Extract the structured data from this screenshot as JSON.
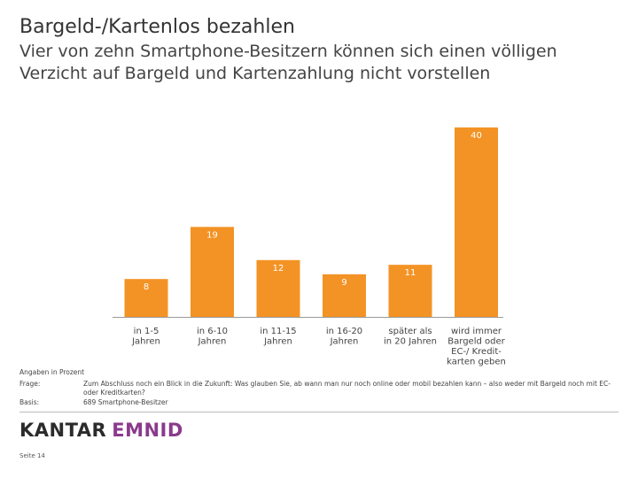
{
  "header": {
    "title": "Bargeld-/Kartenlos bezahlen",
    "subtitle": "Vier von zehn Smartphone-Besitzern können sich einen völligen Verzicht auf Bargeld und Kartenzahlung nicht vorstellen"
  },
  "chart_data": {
    "type": "bar",
    "title": "Bargeld-/Kartenlos bezahlen",
    "categories": [
      [
        "in 1-5",
        "Jahren"
      ],
      [
        "in 6-10",
        "Jahren"
      ],
      [
        "in 11-15",
        "Jahren"
      ],
      [
        "in 16-20",
        "Jahren"
      ],
      [
        "später als",
        "in 20 Jahren"
      ],
      [
        "wird immer",
        "Bargeld oder",
        "EC-/ Kredit-",
        "karten geben"
      ]
    ],
    "values": [
      8,
      19,
      12,
      9,
      11,
      40
    ],
    "xlabel": "",
    "ylabel": "",
    "ylim": [
      0,
      40
    ],
    "bar_color": "#f39325",
    "unit": "Angaben in Prozent"
  },
  "notes": {
    "unit": "Angaben in Prozent",
    "frage_label": "Frage:",
    "frage_text": "Zum Abschluss noch ein Blick in die Zukunft: Was glauben Sie, ab wann man nur noch online oder mobil bezahlen kann – also weder mit Bargeld noch mit EC- oder Kreditkarten?",
    "basis_label": "Basis:",
    "basis_text": "689 Smartphone-Besitzer"
  },
  "footer": {
    "logo_kantar": "KANTAR",
    "logo_emnid": "EMNID",
    "page": "Seite 14"
  }
}
